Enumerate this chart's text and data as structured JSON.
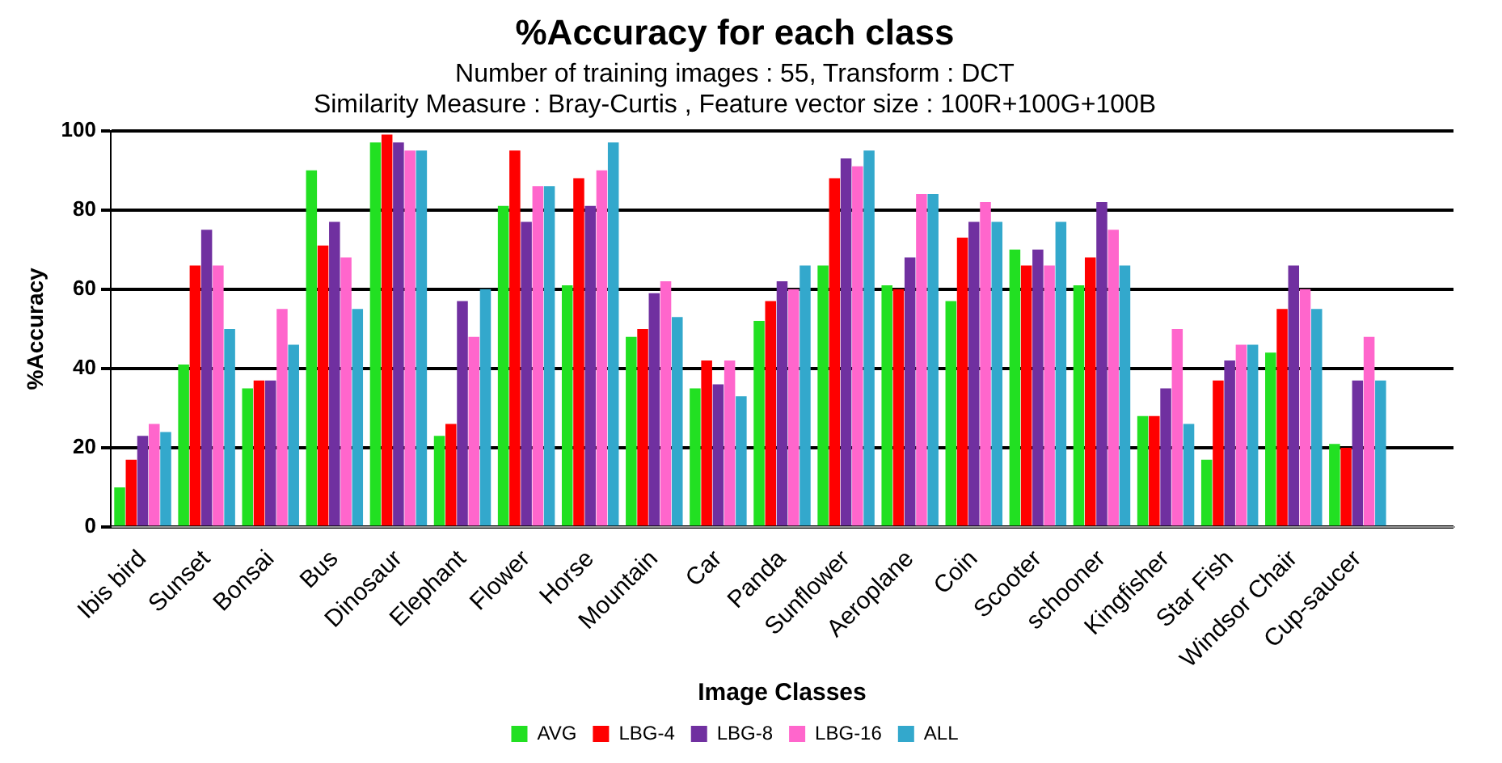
{
  "chart_data": {
    "type": "bar",
    "title": "%Accuracy for each class",
    "subtitle": "Number of training images : 55, Transform : DCT\nSimilarity Measure : Bray-Curtis , Feature vector size : 100R+100G+100B",
    "xlabel": "Image Classes",
    "ylabel": "%Accuracy",
    "categories": [
      "Ibis bird",
      "Sunset",
      "Bonsai",
      "Bus",
      "Dinosaur",
      "Elephant",
      "Flower",
      "Horse",
      "Mountain",
      "Car",
      "Panda",
      "Sunflower",
      "Aeroplane",
      "Coin",
      "Scooter",
      "schooner",
      "Kingfisher",
      "Star Fish",
      "Windsor Chair",
      "Cup-saucer",
      null
    ],
    "series": [
      {
        "name": "AVG",
        "color": "#22e022",
        "values": [
          10,
          41,
          35,
          90,
          97,
          23,
          81,
          61,
          48,
          35,
          52,
          66,
          61,
          57,
          70,
          61,
          28,
          17,
          44,
          21,
          null
        ]
      },
      {
        "name": "LBG-4",
        "color": "#ff0000",
        "values": [
          17,
          66,
          37,
          71,
          99,
          26,
          95,
          88,
          50,
          42,
          57,
          88,
          60,
          73,
          66,
          68,
          28,
          37,
          55,
          20,
          null
        ]
      },
      {
        "name": "LBG-8",
        "color": "#7030a0",
        "values": [
          23,
          75,
          37,
          77,
          97,
          57,
          77,
          81,
          59,
          36,
          62,
          93,
          68,
          77,
          70,
          82,
          35,
          42,
          66,
          37,
          null
        ]
      },
      {
        "name": "LBG-16",
        "color": "#ff66cc",
        "values": [
          26,
          66,
          55,
          68,
          95,
          48,
          86,
          90,
          62,
          42,
          60,
          91,
          84,
          82,
          66,
          75,
          50,
          46,
          60,
          48,
          null
        ]
      },
      {
        "name": "ALL",
        "color": "#33a8cc",
        "values": [
          24,
          50,
          46,
          55,
          95,
          60,
          86,
          97,
          53,
          33,
          66,
          95,
          84,
          77,
          77,
          66,
          26,
          46,
          55,
          37,
          null
        ]
      }
    ],
    "ylim": [
      0,
      100
    ],
    "yticks": [
      0,
      20,
      40,
      60,
      80,
      100
    ],
    "grid": "y",
    "legend": "bottom"
  }
}
